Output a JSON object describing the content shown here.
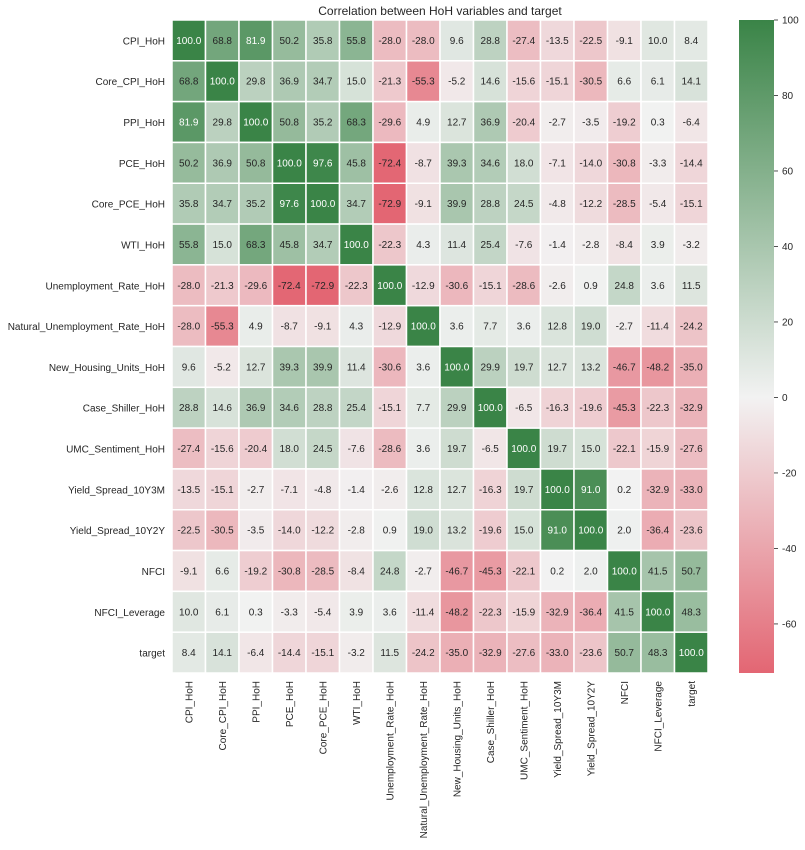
{
  "chart_data": {
    "type": "heatmap",
    "title": "Correlation between HoH variables and target",
    "xlabel": "",
    "ylabel": "",
    "labels": [
      "CPI_HoH",
      "Core_CPI_HoH",
      "PPI_HoH",
      "PCE_HoH",
      "Core_PCE_HoH",
      "WTI_HoH",
      "Unemployment_Rate_HoH",
      "Natural_Unemployment_Rate_HoH",
      "New_Housing_Units_HoH",
      "Case_Shiller_HoH",
      "UMC_Sentiment_HoH",
      "Yield_Spread_10Y3M",
      "Yield_Spread_10Y2Y",
      "NFCI",
      "NFCI_Leverage",
      "target"
    ],
    "values": [
      [
        100.0,
        68.8,
        81.9,
        50.2,
        35.8,
        55.8,
        -28.0,
        -28.0,
        9.6,
        28.8,
        -27.4,
        -13.5,
        -22.5,
        -9.1,
        10.0,
        8.4
      ],
      [
        68.8,
        100.0,
        29.8,
        36.9,
        34.7,
        15.0,
        -21.3,
        -55.3,
        -5.2,
        14.6,
        -15.6,
        -15.1,
        -30.5,
        6.6,
        6.1,
        14.1
      ],
      [
        81.9,
        29.8,
        100.0,
        50.8,
        35.2,
        68.3,
        -29.6,
        4.9,
        12.7,
        36.9,
        -20.4,
        -2.7,
        -3.5,
        -19.2,
        0.3,
        -6.4
      ],
      [
        50.2,
        36.9,
        50.8,
        100.0,
        97.6,
        45.8,
        -72.4,
        -8.7,
        39.3,
        34.6,
        18.0,
        -7.1,
        -14.0,
        -30.8,
        -3.3,
        -14.4
      ],
      [
        35.8,
        34.7,
        35.2,
        97.6,
        100.0,
        34.7,
        -72.9,
        -9.1,
        39.9,
        28.8,
        24.5,
        -4.8,
        -12.2,
        -28.5,
        -5.4,
        -15.1
      ],
      [
        55.8,
        15.0,
        68.3,
        45.8,
        34.7,
        100.0,
        -22.3,
        4.3,
        11.4,
        25.4,
        -7.6,
        -1.4,
        -2.8,
        -8.4,
        3.9,
        -3.2
      ],
      [
        -28.0,
        -21.3,
        -29.6,
        -72.4,
        -72.9,
        -22.3,
        100.0,
        -12.9,
        -30.6,
        -15.1,
        -28.6,
        -2.6,
        0.9,
        24.8,
        3.6,
        11.5
      ],
      [
        -28.0,
        -55.3,
        4.9,
        -8.7,
        -9.1,
        4.3,
        -12.9,
        100.0,
        3.6,
        7.7,
        3.6,
        12.8,
        19.0,
        -2.7,
        -11.4,
        -24.2
      ],
      [
        9.6,
        -5.2,
        12.7,
        39.3,
        39.9,
        11.4,
        -30.6,
        3.6,
        100.0,
        29.9,
        19.7,
        12.7,
        13.2,
        -46.7,
        -48.2,
        -35.0
      ],
      [
        28.8,
        14.6,
        36.9,
        34.6,
        28.8,
        25.4,
        -15.1,
        7.7,
        29.9,
        100.0,
        -6.5,
        -16.3,
        -19.6,
        -45.3,
        -22.3,
        -32.9
      ],
      [
        -27.4,
        -15.6,
        -20.4,
        18.0,
        24.5,
        -7.6,
        -28.6,
        3.6,
        19.7,
        -6.5,
        100.0,
        19.7,
        15.0,
        -22.1,
        -15.9,
        -27.6
      ],
      [
        -13.5,
        -15.1,
        -2.7,
        -7.1,
        -4.8,
        -1.4,
        -2.6,
        12.8,
        12.7,
        -16.3,
        19.7,
        100.0,
        91.0,
        0.2,
        -32.9,
        -33.0
      ],
      [
        -22.5,
        -30.5,
        -3.5,
        -14.0,
        -12.2,
        -2.8,
        0.9,
        19.0,
        13.2,
        -19.6,
        15.0,
        91.0,
        100.0,
        2.0,
        -36.4,
        -23.6
      ],
      [
        -9.1,
        6.6,
        -19.2,
        -30.8,
        -28.5,
        -8.4,
        24.8,
        -2.7,
        -46.7,
        -45.3,
        -22.1,
        0.2,
        2.0,
        100.0,
        41.5,
        50.7
      ],
      [
        10.0,
        6.1,
        0.3,
        -3.3,
        -5.4,
        3.9,
        3.6,
        -11.4,
        -48.2,
        -22.3,
        -15.9,
        -32.9,
        -36.4,
        41.5,
        100.0,
        48.3
      ],
      [
        8.4,
        14.1,
        -6.4,
        -14.4,
        -15.1,
        -3.2,
        11.5,
        -24.2,
        -35.0,
        -32.9,
        -27.6,
        -33.0,
        -23.6,
        50.7,
        48.3,
        100.0
      ]
    ],
    "value_format": "one-decimal",
    "colorbar": {
      "range": [
        -73,
        100
      ],
      "center": 0,
      "ticks": [
        -60,
        -40,
        -20,
        0,
        20,
        40,
        60,
        80,
        100
      ],
      "colors": {
        "negative": "#e36673",
        "center": "#f2f2f2",
        "positive": "#3a8447"
      }
    },
    "grid": false,
    "legend": "right"
  }
}
